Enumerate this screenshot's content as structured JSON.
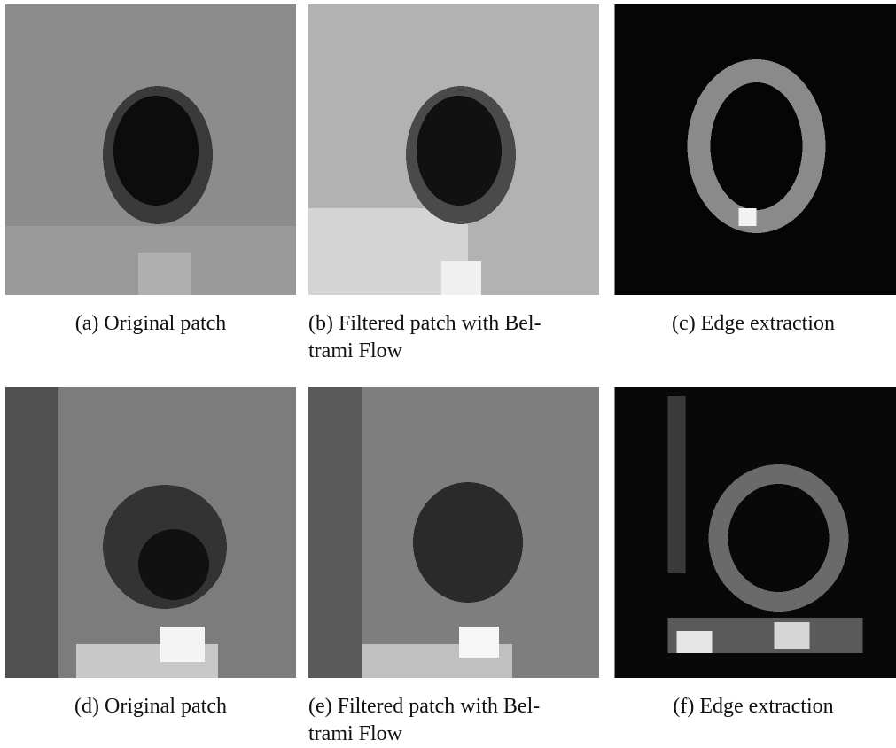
{
  "figures": [
    {
      "caption": [
        "(a) Original patch"
      ]
    },
    {
      "caption": [
        "(b) Filtered patch with Bel-",
        "trami Flow"
      ]
    },
    {
      "caption": [
        "(c) Edge extraction"
      ]
    },
    {
      "caption": [
        "(d) Original patch"
      ]
    },
    {
      "caption": [
        "(e) Filtered patch with Bel-",
        "trami Flow"
      ]
    },
    {
      "caption": [
        "(f) Edge extraction"
      ]
    }
  ]
}
